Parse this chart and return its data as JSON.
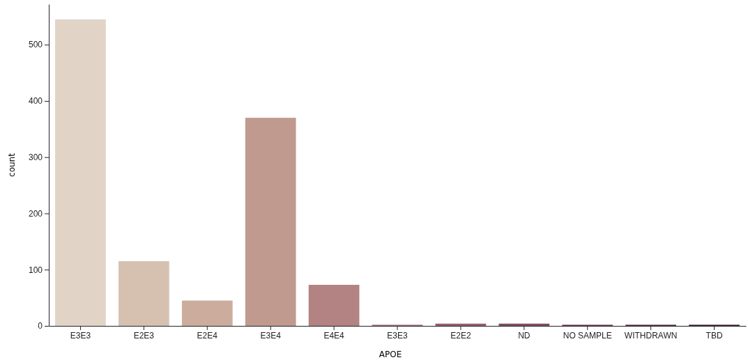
{
  "chart_data": {
    "type": "bar",
    "xlabel": "APOE",
    "ylabel": "count",
    "categories": [
      "E3E3",
      "E2E3",
      "E2E4",
      "E3E4",
      "E4E4",
      "E3E3",
      "E2E2",
      "ND",
      "NO SAMPLE",
      "WITHDRAWN",
      "TBD"
    ],
    "values": [
      545,
      115,
      45,
      370,
      73,
      2,
      4,
      4,
      2,
      2,
      2
    ],
    "colors": [
      "#e1d4c6",
      "#d6c1b1",
      "#ccad9d",
      "#c09a8f",
      "#b28382",
      "#a06f76",
      "#93606f",
      "#7d4f65",
      "#673e58",
      "#52304b",
      "#3c203e"
    ],
    "ylim": [
      0,
      572
    ],
    "yticks": [
      0,
      100,
      200,
      300,
      400,
      500
    ],
    "grid": false
  }
}
